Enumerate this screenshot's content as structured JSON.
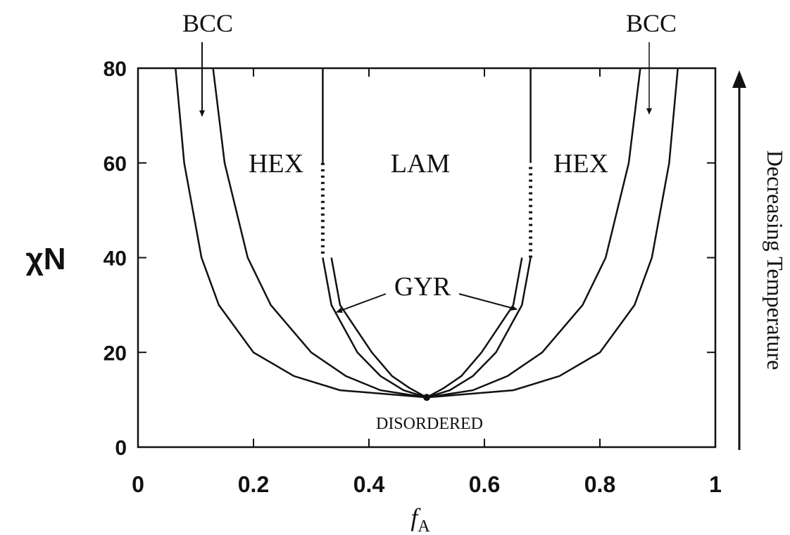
{
  "chart_data": {
    "type": "line",
    "x_label": {
      "main": "f",
      "sub": "A"
    },
    "y_label": "χN",
    "xlim": [
      0,
      1
    ],
    "xticks": [
      0,
      0.2,
      0.4,
      0.6,
      0.8,
      1
    ],
    "ylim": [
      0,
      80
    ],
    "yticks": [
      0,
      20,
      40,
      60,
      80
    ],
    "color": "#111111",
    "series": [
      {
        "style": "solid",
        "x": [
          0.065,
          0.08,
          0.11,
          0.14,
          0.2,
          0.27,
          0.35,
          0.5,
          0.65,
          0.73,
          0.8,
          0.86,
          0.89,
          0.92,
          0.935
        ],
        "values": [
          80,
          60,
          40,
          30,
          20,
          15,
          12,
          10.5,
          12,
          15,
          20,
          30,
          40,
          60,
          80
        ]
      },
      {
        "style": "solid",
        "x": [
          0.13,
          0.15,
          0.19,
          0.23,
          0.3,
          0.36,
          0.42,
          0.5,
          0.58,
          0.64,
          0.7,
          0.77,
          0.81,
          0.85,
          0.87
        ],
        "values": [
          80,
          60,
          40,
          30,
          20,
          15,
          12,
          10.5,
          12,
          15,
          20,
          30,
          40,
          60,
          80
        ]
      },
      {
        "style": "solid",
        "x": [
          0.32,
          0.32,
          null,
          0.68,
          0.68
        ],
        "values": [
          80,
          60,
          null,
          60,
          80
        ]
      },
      {
        "style": "dotted",
        "x": [
          0.32,
          0.32,
          null,
          0.68,
          0.68
        ],
        "values": [
          60,
          40,
          null,
          40,
          60
        ]
      },
      {
        "style": "solid",
        "x": [
          0.32,
          0.335,
          0.38,
          0.42,
          0.46,
          0.5,
          0.54,
          0.58,
          0.62,
          0.665,
          0.68
        ],
        "values": [
          40,
          30,
          20,
          15,
          12,
          10.5,
          12,
          15,
          20,
          30,
          40
        ]
      },
      {
        "style": "solid",
        "x": [
          0.335,
          0.35,
          0.405,
          0.44,
          0.47,
          0.5,
          0.53,
          0.56,
          0.595,
          0.65,
          0.665
        ],
        "values": [
          40,
          30,
          20,
          15,
          12.5,
          10.5,
          12.5,
          15,
          20,
          30,
          40
        ]
      }
    ],
    "critical_point": {
      "x": 0.5,
      "y": 10.5
    },
    "annotations": [
      "BCC",
      "BCC",
      "HEX",
      "LAM",
      "HEX",
      "GYR",
      "DISORDERED",
      "Decreasing Temperature"
    ]
  }
}
